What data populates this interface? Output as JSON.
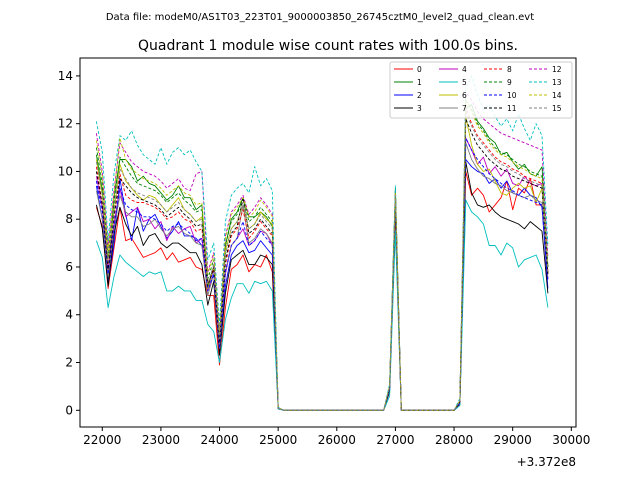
{
  "header": {
    "data_file": "Data file: modeM0/AS1T03_223T01_9000003850_26745cztM0_level2_quad_clean.evt"
  },
  "chart_data": {
    "type": "line",
    "title": "Quadrant 1 module wise count rates with 100.0s bins.",
    "xlabel": "",
    "ylabel": "",
    "x_offset_label": "+3.372e8",
    "xlim": [
      21620,
      30080
    ],
    "ylim": [
      -0.7,
      14.75
    ],
    "x_ticks": [
      22000,
      23000,
      24000,
      25000,
      26000,
      27000,
      28000,
      29000,
      30000
    ],
    "x_tick_labels": [
      "22000",
      "23000",
      "24000",
      "25000",
      "26000",
      "27000",
      "28000",
      "29000",
      "30000"
    ],
    "y_ticks": [
      0,
      2,
      4,
      6,
      8,
      10,
      12,
      14
    ],
    "y_tick_labels": [
      "0",
      "2",
      "4",
      "6",
      "8",
      "10",
      "12",
      "14"
    ],
    "legend_position": "top-right",
    "x": [
      21900,
      22000,
      22100,
      22200,
      22300,
      22400,
      22500,
      22600,
      22700,
      22800,
      22900,
      23000,
      23100,
      23200,
      23300,
      23400,
      23500,
      23600,
      23700,
      23800,
      23900,
      24000,
      24100,
      24200,
      24300,
      24400,
      24500,
      24600,
      24700,
      24800,
      24900,
      25000,
      25100,
      26800,
      26900,
      27000,
      27100,
      27200,
      28000,
      28100,
      28200,
      28300,
      28400,
      28500,
      28600,
      28700,
      28800,
      28900,
      29000,
      29100,
      29200,
      29300,
      29400,
      29500,
      29600
    ],
    "series": [
      {
        "name": "0",
        "color": "#ff0000",
        "dash": false,
        "values": [
          8.5,
          7.7,
          5.1,
          6.8,
          8.5,
          7.1,
          7.2,
          6.8,
          6.4,
          6.5,
          6.6,
          6.8,
          6.3,
          6.6,
          6.2,
          6.3,
          6.4,
          6.0,
          5.9,
          4.8,
          4.8,
          1.9,
          4.3,
          5.9,
          6.1,
          6.5,
          5.8,
          6.1,
          6.0,
          6.5,
          5.8,
          0.08,
          0,
          0,
          0.9,
          8.3,
          0,
          0,
          0,
          0.25,
          10.0,
          9.0,
          9.3,
          9.0,
          8.3,
          8.6,
          8.9,
          9.6,
          8.4,
          9.3,
          9.1,
          9.7,
          8.6,
          8.6,
          5.7
        ]
      },
      {
        "name": "1",
        "color": "#008000",
        "dash": false,
        "values": [
          10.7,
          9.2,
          5.5,
          8.9,
          10.5,
          10.5,
          10.2,
          9.6,
          9.8,
          9.5,
          9.4,
          9.1,
          8.8,
          9.0,
          9.4,
          8.9,
          8.9,
          8.4,
          8.6,
          5.2,
          6.0,
          3.0,
          6.9,
          8.0,
          8.3,
          8.9,
          8.1,
          8.1,
          8.3,
          8.1,
          7.7,
          0.1,
          0,
          0,
          1.0,
          9.3,
          0,
          0,
          0,
          0.4,
          12.6,
          12.8,
          12.1,
          11.8,
          11.4,
          11.2,
          10.7,
          10.8,
          10.4,
          10.1,
          10.3,
          9.9,
          9.8,
          10.2,
          6.0
        ]
      },
      {
        "name": "2",
        "color": "#0000ff",
        "dash": false,
        "values": [
          9.4,
          8.0,
          5.3,
          7.0,
          9.7,
          8.2,
          7.1,
          8.5,
          7.5,
          8.0,
          8.2,
          7.7,
          7.2,
          7.5,
          7.9,
          7.3,
          7.3,
          7.2,
          6.9,
          5.1,
          5.9,
          2.4,
          5.2,
          6.5,
          6.9,
          7.1,
          6.6,
          6.7,
          7.1,
          6.8,
          6.5,
          0.08,
          0,
          0,
          0.8,
          8.8,
          0,
          0,
          0,
          0.3,
          10.5,
          10.2,
          10.0,
          9.9,
          9.5,
          9.7,
          9.3,
          9.6,
          9.1,
          9.0,
          9.3,
          9.0,
          8.9,
          8.5,
          5.1
        ]
      },
      {
        "name": "3",
        "color": "#000000",
        "dash": false,
        "values": [
          8.6,
          7.6,
          5.2,
          7.4,
          8.5,
          7.8,
          7.3,
          7.7,
          6.9,
          7.3,
          7.4,
          7.0,
          6.8,
          7.0,
          7.0,
          6.8,
          6.6,
          6.6,
          6.1,
          4.4,
          5.4,
          2.3,
          4.9,
          6.3,
          6.5,
          6.7,
          6.1,
          6.1,
          6.5,
          6.4,
          6.1,
          0.08,
          0,
          0,
          0.8,
          8.4,
          0,
          0,
          0,
          0.3,
          10.4,
          9.1,
          8.6,
          8.5,
          8.6,
          8.3,
          8.1,
          8.0,
          7.9,
          7.8,
          7.6,
          7.9,
          7.7,
          7.5,
          4.9
        ]
      },
      {
        "name": "4",
        "color": "#bf00bf",
        "dash": false,
        "values": [
          9.8,
          8.5,
          5.9,
          7.8,
          9.3,
          8.1,
          8.3,
          8.5,
          7.9,
          8.0,
          7.6,
          7.9,
          7.1,
          7.7,
          7.4,
          7.6,
          7.7,
          7.0,
          7.2,
          5.0,
          5.7,
          2.6,
          5.7,
          6.9,
          7.2,
          7.6,
          6.9,
          7.1,
          7.5,
          7.4,
          6.9,
          0.08,
          0,
          0,
          0.9,
          8.9,
          0,
          0,
          0,
          0.35,
          11.4,
          10.9,
          10.3,
          10.6,
          9.9,
          10.2,
          9.8,
          10.1,
          9.5,
          9.4,
          9.8,
          9.5,
          9.4,
          9.5,
          5.5
        ]
      },
      {
        "name": "5",
        "color": "#00bfbf",
        "dash": false,
        "values": [
          7.1,
          6.4,
          4.3,
          5.6,
          6.5,
          6.2,
          6.0,
          5.8,
          5.6,
          5.8,
          5.7,
          5.8,
          5.0,
          5.0,
          5.2,
          5.0,
          5.0,
          4.6,
          4.6,
          3.6,
          3.3,
          2.0,
          3.8,
          4.7,
          5.3,
          5.3,
          4.9,
          5.4,
          5.3,
          5.4,
          5.0,
          0.05,
          0,
          0,
          0.6,
          7.5,
          0,
          0,
          0,
          0.2,
          8.8,
          8.3,
          8.1,
          7.8,
          6.9,
          6.9,
          6.5,
          7.0,
          6.8,
          6.0,
          6.3,
          6.4,
          6.5,
          5.9,
          4.3
        ]
      },
      {
        "name": "6",
        "color": "#bfbf00",
        "dash": false,
        "values": [
          10.5,
          9.0,
          6.3,
          8.3,
          10.3,
          9.6,
          9.3,
          9.0,
          8.8,
          9.0,
          8.9,
          8.6,
          8.3,
          8.6,
          8.9,
          8.4,
          8.2,
          7.9,
          8.1,
          5.1,
          6.0,
          3.0,
          6.7,
          7.6,
          7.9,
          8.6,
          7.6,
          7.8,
          8.3,
          8.0,
          7.8,
          0.1,
          0,
          0,
          1.0,
          9.0,
          0,
          0,
          0,
          0.4,
          12.3,
          11.1,
          10.3,
          10.0,
          10.1,
          9.6,
          9.1,
          9.0,
          9.3,
          9.5,
          9.3,
          9.4,
          8.7,
          9.3,
          5.7
        ]
      },
      {
        "name": "7",
        "color": "#808080",
        "dash": false,
        "values": [
          9.2,
          8.0,
          5.6,
          7.6,
          9.0,
          8.3,
          8.1,
          8.1,
          7.7,
          7.8,
          8.0,
          7.6,
          7.3,
          7.6,
          7.7,
          7.4,
          7.3,
          7.0,
          6.9,
          4.8,
          5.7,
          2.6,
          5.8,
          6.9,
          7.2,
          8.6,
          7.0,
          7.2,
          7.6,
          7.4,
          7.0,
          0.08,
          0,
          0,
          0.9,
          8.7,
          0,
          0,
          0,
          0.35,
          11.2,
          10.5,
          10.1,
          9.8,
          9.7,
          9.5,
          9.4,
          9.2,
          9.1,
          9.0,
          8.9,
          9.0,
          8.8,
          8.7,
          5.5
        ]
      },
      {
        "name": "8",
        "color": "#ff0000",
        "dash": true,
        "values": [
          10.2,
          8.6,
          6.0,
          8.2,
          9.9,
          9.0,
          8.8,
          8.7,
          8.7,
          8.6,
          8.5,
          8.3,
          8.0,
          8.1,
          8.3,
          8.0,
          7.9,
          7.5,
          7.6,
          5.3,
          5.9,
          2.8,
          6.1,
          7.3,
          7.6,
          8.4,
          7.2,
          7.5,
          7.9,
          7.6,
          7.3,
          0.1,
          0,
          0,
          1.0,
          8.9,
          0,
          0,
          0,
          0.35,
          12.7,
          12.0,
          11.5,
          11.2,
          10.9,
          10.6,
          10.4,
          10.3,
          10.1,
          10.0,
          9.8,
          9.7,
          9.6,
          9.5,
          5.8
        ]
      },
      {
        "name": "9",
        "color": "#008000",
        "dash": true,
        "values": [
          11.0,
          9.5,
          6.4,
          8.7,
          10.6,
          10.2,
          9.8,
          9.5,
          9.4,
          9.3,
          9.2,
          9.0,
          8.7,
          8.9,
          9.1,
          8.8,
          8.6,
          8.3,
          8.4,
          5.5,
          6.3,
          3.1,
          6.9,
          7.9,
          8.2,
          8.9,
          7.9,
          8.1,
          8.5,
          8.2,
          7.9,
          0.1,
          0,
          0,
          1.0,
          9.2,
          0,
          0,
          0,
          0.4,
          13.0,
          12.6,
          12.0,
          11.7,
          11.3,
          11.0,
          10.8,
          10.7,
          10.5,
          10.3,
          10.2,
          10.0,
          9.9,
          9.8,
          6.0
        ]
      },
      {
        "name": "10",
        "color": "#0000ff",
        "dash": true,
        "values": [
          9.6,
          8.3,
          5.7,
          7.7,
          9.3,
          8.6,
          8.4,
          8.3,
          8.1,
          8.1,
          8.0,
          7.8,
          7.5,
          7.7,
          7.8,
          7.6,
          7.4,
          7.1,
          7.2,
          5.0,
          5.7,
          2.6,
          5.8,
          6.9,
          7.2,
          7.9,
          6.9,
          7.1,
          7.5,
          7.2,
          6.9,
          0.08,
          0,
          0,
          0.9,
          8.8,
          0,
          0,
          0,
          0.3,
          11.4,
          10.9,
          10.5,
          10.2,
          9.9,
          9.7,
          9.5,
          9.3,
          9.2,
          9.0,
          8.9,
          8.8,
          8.7,
          8.6,
          5.4
        ]
      },
      {
        "name": "11",
        "color": "#000000",
        "dash": true,
        "values": [
          10.0,
          8.6,
          5.9,
          8.1,
          9.7,
          9.4,
          9.1,
          8.9,
          8.8,
          8.7,
          8.6,
          8.4,
          8.1,
          8.3,
          8.5,
          8.2,
          8.0,
          7.7,
          7.8,
          5.2,
          6.0,
          2.9,
          6.3,
          7.4,
          7.7,
          8.9,
          7.4,
          7.6,
          8.0,
          7.7,
          7.4,
          0.1,
          0,
          0,
          0.9,
          8.9,
          0,
          0,
          0,
          0.35,
          12.2,
          11.6,
          11.1,
          10.8,
          10.5,
          10.3,
          10.1,
          10.0,
          9.8,
          9.7,
          9.6,
          9.5,
          9.4,
          9.3,
          5.7
        ]
      },
      {
        "name": "12",
        "color": "#bf00bf",
        "dash": true,
        "values": [
          11.6,
          10.0,
          6.8,
          9.2,
          11.2,
          10.8,
          10.4,
          10.2,
          10.0,
          9.9,
          9.8,
          9.6,
          9.3,
          9.5,
          9.7,
          9.3,
          9.2,
          9.9,
          10.0,
          5.8,
          6.6,
          3.3,
          7.3,
          8.3,
          8.6,
          9.0,
          8.2,
          8.5,
          8.9,
          8.6,
          8.2,
          0.1,
          0,
          0,
          1.0,
          9.2,
          0,
          0,
          0,
          0.4,
          13.3,
          13.0,
          12.5,
          12.2,
          12.0,
          11.8,
          11.6,
          11.5,
          11.4,
          11.3,
          11.2,
          11.1,
          11.0,
          10.9,
          6.4
        ]
      },
      {
        "name": "13",
        "color": "#00bfbf",
        "dash": true,
        "values": [
          12.1,
          10.8,
          7.1,
          9.9,
          11.5,
          11.3,
          11.7,
          11.1,
          10.7,
          10.5,
          10.3,
          11.0,
          10.3,
          10.8,
          11.0,
          10.7,
          10.9,
          10.4,
          10.0,
          6.3,
          7.0,
          3.6,
          7.9,
          9.0,
          9.3,
          9.5,
          9.1,
          10.2,
          9.4,
          9.7,
          9.2,
          0.12,
          0,
          0,
          1.1,
          9.4,
          0,
          0,
          0,
          0.5,
          13.5,
          14.0,
          13.2,
          12.6,
          12.8,
          12.3,
          11.9,
          12.2,
          11.7,
          12.4,
          11.8,
          11.3,
          12.0,
          11.5,
          6.9
        ]
      },
      {
        "name": "14",
        "color": "#bfbf00",
        "dash": true,
        "values": [
          11.3,
          9.8,
          6.7,
          9.0,
          11.4,
          10.5,
          10.1,
          9.9,
          9.7,
          9.6,
          9.5,
          9.3,
          9.0,
          9.2,
          9.4,
          9.1,
          9.0,
          8.6,
          8.7,
          5.7,
          6.5,
          3.2,
          7.2,
          8.2,
          8.5,
          8.9,
          8.1,
          8.3,
          8.8,
          8.5,
          8.1,
          0.1,
          0,
          0,
          1.0,
          9.1,
          0,
          0,
          0,
          0.4,
          13.0,
          12.5,
          11.9,
          11.6,
          11.2,
          10.9,
          10.7,
          10.6,
          10.4,
          10.2,
          10.1,
          9.9,
          9.8,
          9.7,
          6.1
        ]
      },
      {
        "name": "15",
        "color": "#808080",
        "dash": true,
        "values": [
          10.4,
          9.0,
          6.2,
          8.4,
          10.1,
          9.7,
          9.3,
          9.1,
          9.0,
          8.9,
          8.8,
          8.6,
          8.3,
          8.5,
          8.7,
          8.4,
          8.2,
          7.9,
          8.0,
          5.3,
          6.1,
          3.0,
          6.5,
          7.6,
          7.9,
          8.7,
          7.6,
          7.8,
          8.2,
          7.9,
          7.6,
          0.1,
          0,
          0,
          1.0,
          9.0,
          0,
          0,
          0,
          0.4,
          12.5,
          11.9,
          11.4,
          11.1,
          10.8,
          10.5,
          10.3,
          10.2,
          10.0,
          9.9,
          9.7,
          9.6,
          9.5,
          9.4,
          5.8
        ]
      }
    ]
  }
}
